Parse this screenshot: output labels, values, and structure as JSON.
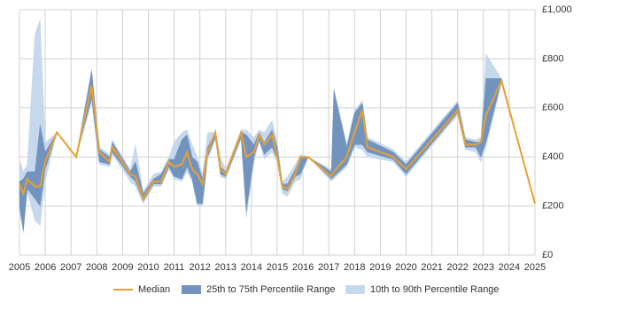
{
  "chart_data": {
    "type": "band-line",
    "x": [
      2005.0,
      2005.15,
      2005.3,
      2005.6,
      2005.8,
      2006.0,
      2006.45,
      2007.2,
      2007.8,
      2008.1,
      2008.5,
      2008.6,
      2009.3,
      2009.5,
      2009.8,
      2010.2,
      2010.5,
      2010.8,
      2011.0,
      2011.3,
      2011.5,
      2011.7,
      2011.9,
      2012.1,
      2012.3,
      2012.6,
      2012.8,
      2013.0,
      2013.6,
      2013.8,
      2014.1,
      2014.3,
      2014.5,
      2014.8,
      2015.0,
      2015.2,
      2015.4,
      2015.7,
      2015.9,
      2016.2,
      2017.1,
      2017.2,
      2017.7,
      2018.0,
      2018.3,
      2018.5,
      2019.5,
      2020.0,
      2022.0,
      2022.3,
      2022.7,
      2022.9,
      2023.1,
      2023.7,
      2025.0
    ],
    "series": [
      {
        "name": "Median",
        "color": "#e8a030",
        "values": [
          290,
          250,
          310,
          280,
          280,
          380,
          500,
          400,
          690,
          420,
          380,
          440,
          330,
          320,
          230,
          300,
          300,
          380,
          360,
          370,
          420,
          350,
          330,
          290,
          420,
          500,
          350,
          330,
          500,
          400,
          420,
          490,
          450,
          490,
          400,
          280,
          270,
          330,
          400,
          400,
          320,
          340,
          400,
          500,
          590,
          440,
          400,
          350,
          590,
          450,
          450,
          460,
          570,
          710,
          210
        ]
      },
      {
        "name": "25th to 75th Percentile Range",
        "color": "#7393bf",
        "low": [
          200,
          100,
          270,
          230,
          200,
          350,
          500,
          400,
          640,
          380,
          370,
          420,
          320,
          300,
          220,
          290,
          290,
          360,
          320,
          310,
          360,
          310,
          210,
          210,
          400,
          480,
          330,
          320,
          480,
          180,
          400,
          470,
          410,
          440,
          390,
          270,
          260,
          320,
          330,
          400,
          310,
          320,
          370,
          450,
          450,
          420,
          390,
          330,
          580,
          440,
          440,
          400,
          460,
          710,
          210
        ],
        "high": [
          300,
          310,
          340,
          340,
          530,
          420,
          500,
          400,
          750,
          430,
          400,
          460,
          340,
          380,
          250,
          310,
          330,
          390,
          390,
          470,
          490,
          400,
          380,
          310,
          440,
          500,
          360,
          340,
          500,
          490,
          450,
          500,
          460,
          510,
          440,
          290,
          290,
          350,
          400,
          400,
          340,
          670,
          440,
          580,
          620,
          470,
          420,
          370,
          620,
          470,
          460,
          460,
          720,
          720,
          210
        ]
      },
      {
        "name": "10th to 90th Percentile Range",
        "color": "#c6d9ec",
        "low": [
          180,
          90,
          260,
          140,
          120,
          300,
          500,
          400,
          620,
          370,
          360,
          410,
          300,
          280,
          210,
          280,
          280,
          350,
          310,
          300,
          340,
          300,
          200,
          200,
          390,
          470,
          320,
          310,
          470,
          150,
          380,
          460,
          390,
          420,
          380,
          250,
          240,
          300,
          310,
          400,
          300,
          310,
          360,
          440,
          430,
          400,
          380,
          320,
          570,
          430,
          420,
          380,
          440,
          700,
          210
        ],
        "high": [
          390,
          340,
          370,
          900,
          960,
          460,
          500,
          400,
          760,
          440,
          410,
          470,
          350,
          450,
          260,
          330,
          340,
          400,
          460,
          500,
          510,
          450,
          400,
          330,
          500,
          500,
          400,
          350,
          510,
          510,
          480,
          510,
          500,
          550,
          460,
          300,
          320,
          370,
          410,
          400,
          350,
          680,
          450,
          590,
          630,
          480,
          430,
          380,
          630,
          480,
          470,
          480,
          820,
          720,
          210
        ]
      }
    ],
    "xlim": [
      2005,
      2025
    ],
    "xticks": [
      2005,
      2006,
      2007,
      2008,
      2009,
      2010,
      2011,
      2012,
      2013,
      2014,
      2015,
      2016,
      2017,
      2018,
      2019,
      2020,
      2021,
      2022,
      2023,
      2024,
      2025
    ],
    "ylim": [
      0,
      1000
    ],
    "yticks": [
      {
        "value": 0,
        "label": "£0"
      },
      {
        "value": 200,
        "label": "£200"
      },
      {
        "value": 400,
        "label": "£400"
      },
      {
        "value": 600,
        "label": "£600"
      },
      {
        "value": 800,
        "label": "£800"
      },
      {
        "value": 1000,
        "label": "£1,000"
      }
    ],
    "grid": true
  }
}
